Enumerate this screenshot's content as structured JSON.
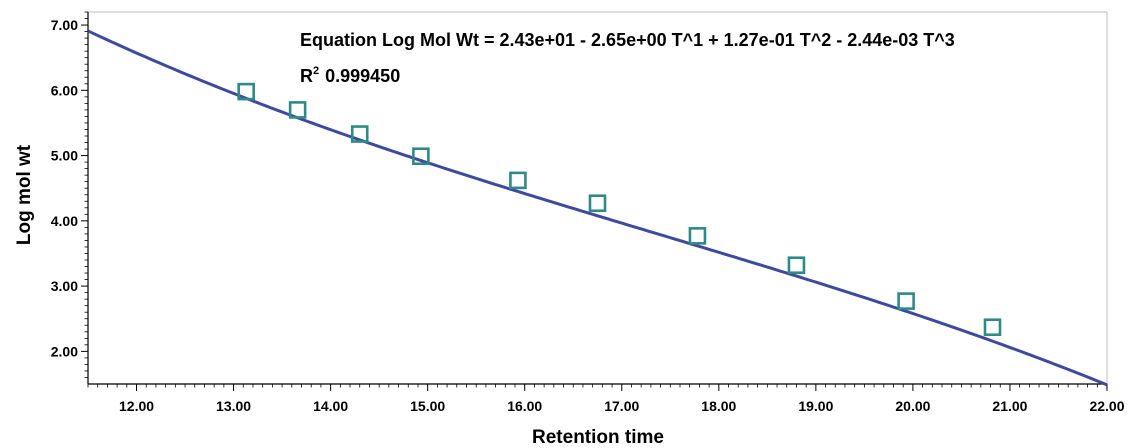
{
  "chart_data": {
    "type": "scatter",
    "xlabel": "Retention time",
    "ylabel": "Log mol wt",
    "xlim": [
      11.5,
      22.0
    ],
    "ylim": [
      1.5,
      7.2
    ],
    "x_ticks": [
      "12.00",
      "13.00",
      "14.00",
      "15.00",
      "16.00",
      "17.00",
      "18.00",
      "19.00",
      "20.00",
      "21.00",
      "22.00"
    ],
    "x_tick_values": [
      12,
      13,
      14,
      15,
      16,
      17,
      18,
      19,
      20,
      21,
      22
    ],
    "y_ticks": [
      "7.00",
      "6.00",
      "5.00",
      "4.00",
      "3.00",
      "2.00"
    ],
    "y_tick_values": [
      7,
      6,
      5,
      4,
      3,
      2
    ],
    "grid": false,
    "equation_label": "Equation Log Mol Wt = 2.43e+01 - 2.65e+00 T^1 + 1.27e-01 T^2 - 2.44e-03 T^3",
    "r2_label": "R",
    "r2_sup": "2",
    "r2_value": "0.999450",
    "fit_coefficients": [
      24.3,
      -2.65,
      0.127,
      -0.00244
    ],
    "points": {
      "x": [
        13.13,
        13.66,
        14.3,
        14.93,
        15.93,
        16.75,
        17.78,
        18.8,
        19.93,
        20.82
      ],
      "y": [
        5.98,
        5.7,
        5.33,
        4.99,
        4.62,
        4.27,
        3.77,
        3.32,
        2.77,
        2.37
      ]
    },
    "colors": {
      "line": "#3d4aa0",
      "marker": "#2f8a87",
      "axis": "#000000",
      "frame": "#bfbfbf"
    }
  }
}
